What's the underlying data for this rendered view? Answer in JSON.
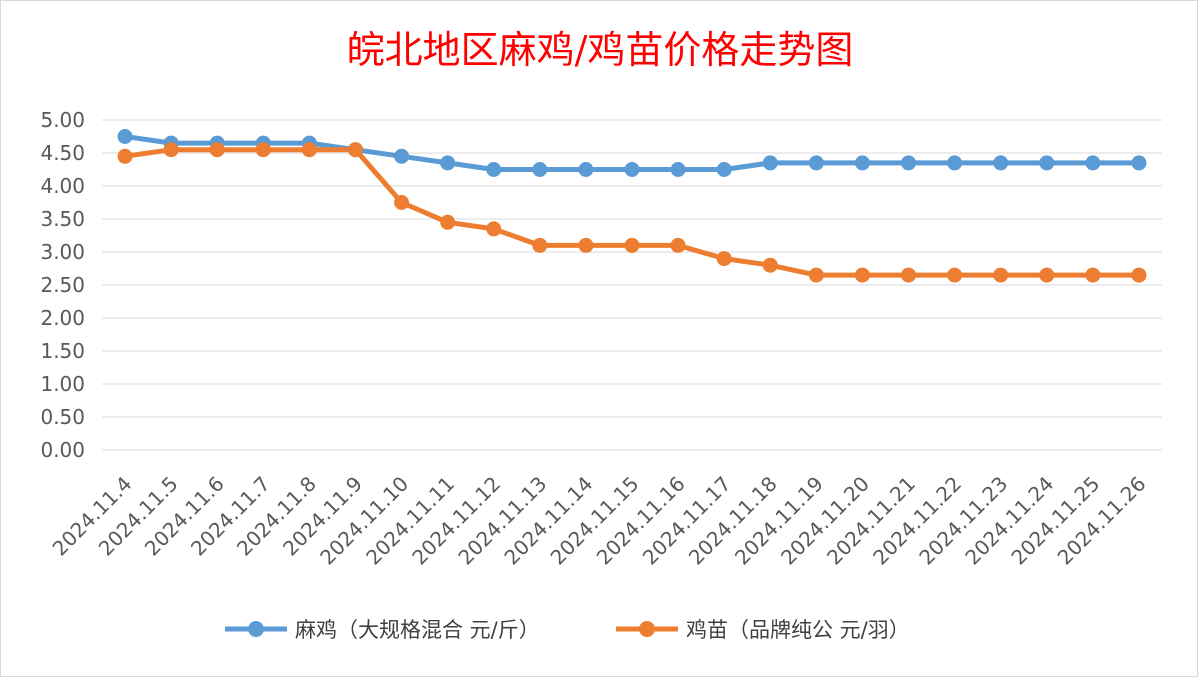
{
  "chart_data": {
    "type": "line",
    "title": "皖北地区麻鸡/鸡苗价格走势图",
    "xlabel": "",
    "ylabel": "",
    "ylim": [
      0,
      5
    ],
    "y_ticks": [
      "0.00",
      "0.50",
      "1.00",
      "1.50",
      "2.00",
      "2.50",
      "3.00",
      "3.50",
      "4.00",
      "4.50",
      "5.00"
    ],
    "grid": true,
    "legend_position": "bottom",
    "categories": [
      "2024.11.4",
      "2024.11.5",
      "2024.11.6",
      "2024.11.7",
      "2024.11.8",
      "2024.11.9",
      "2024.11.10",
      "2024.11.11",
      "2024.11.12",
      "2024.11.13",
      "2024.11.14",
      "2024.11.15",
      "2024.11.16",
      "2024.11.17",
      "2024.11.18",
      "2024.11.19",
      "2024.11.20",
      "2024.11.21",
      "2024.11.22",
      "2024.11.23",
      "2024.11.24",
      "2024.11.25",
      "2024.11.26"
    ],
    "series": [
      {
        "name": "麻鸡（大规格混合 元/斤）",
        "color": "#5b9bd5",
        "values": [
          4.75,
          4.65,
          4.65,
          4.65,
          4.65,
          4.55,
          4.45,
          4.35,
          4.25,
          4.25,
          4.25,
          4.25,
          4.25,
          4.25,
          4.35,
          4.35,
          4.35,
          4.35,
          4.35,
          4.35,
          4.35,
          4.35,
          4.35
        ]
      },
      {
        "name": "鸡苗（品牌纯公 元/羽）",
        "color": "#ed7d31",
        "values": [
          4.45,
          4.55,
          4.55,
          4.55,
          4.55,
          4.55,
          3.75,
          3.45,
          3.35,
          3.1,
          3.1,
          3.1,
          3.1,
          2.9,
          2.8,
          2.65,
          2.65,
          2.65,
          2.65,
          2.65,
          2.65,
          2.65,
          2.65
        ]
      }
    ]
  }
}
